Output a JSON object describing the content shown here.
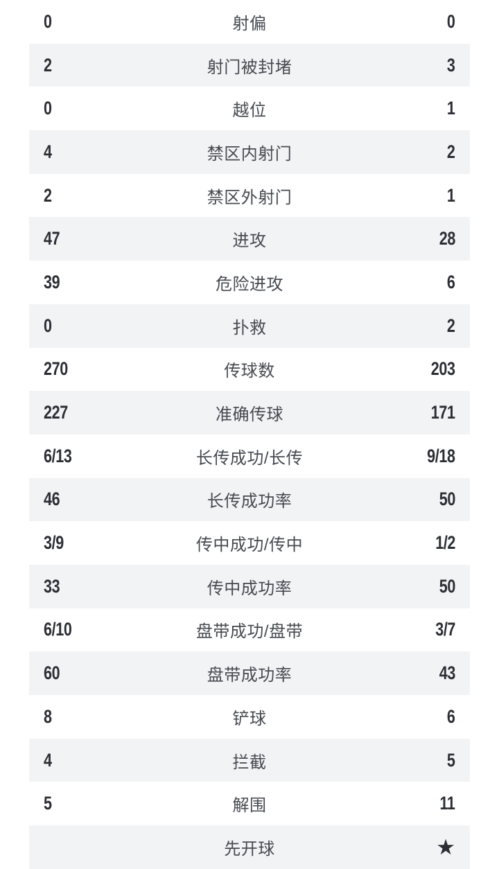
{
  "colors": {
    "page_bg": "#ffffff",
    "alt_row_bg": "#f2f3f5",
    "number_color": "#2b2e34",
    "label_color": "#464a50",
    "star_color": "#2b2e34"
  },
  "stats": {
    "kickoff_star_glyph": "★",
    "rows": [
      {
        "home": "0",
        "label": "射偏",
        "away": "0"
      },
      {
        "home": "2",
        "label": "射门被封堵",
        "away": "3"
      },
      {
        "home": "0",
        "label": "越位",
        "away": "1"
      },
      {
        "home": "4",
        "label": "禁区内射门",
        "away": "2"
      },
      {
        "home": "2",
        "label": "禁区外射门",
        "away": "1"
      },
      {
        "home": "47",
        "label": "进攻",
        "away": "28"
      },
      {
        "home": "39",
        "label": "危险进攻",
        "away": "6"
      },
      {
        "home": "0",
        "label": "扑救",
        "away": "2"
      },
      {
        "home": "270",
        "label": "传球数",
        "away": "203"
      },
      {
        "home": "227",
        "label": "准确传球",
        "away": "171"
      },
      {
        "home": "6/13",
        "label": "长传成功/长传",
        "away": "9/18"
      },
      {
        "home": "46",
        "label": "长传成功率",
        "away": "50"
      },
      {
        "home": "3/9",
        "label": "传中成功/传中",
        "away": "1/2"
      },
      {
        "home": "33",
        "label": "传中成功率",
        "away": "50"
      },
      {
        "home": "6/10",
        "label": "盘带成功/盘带",
        "away": "3/7"
      },
      {
        "home": "60",
        "label": "盘带成功率",
        "away": "43"
      },
      {
        "home": "8",
        "label": "铲球",
        "away": "6"
      },
      {
        "home": "4",
        "label": "拦截",
        "away": "5"
      },
      {
        "home": "5",
        "label": "解围",
        "away": "11"
      },
      {
        "home": "",
        "label": "先开球",
        "away": "★",
        "away_icon": "star"
      }
    ]
  }
}
